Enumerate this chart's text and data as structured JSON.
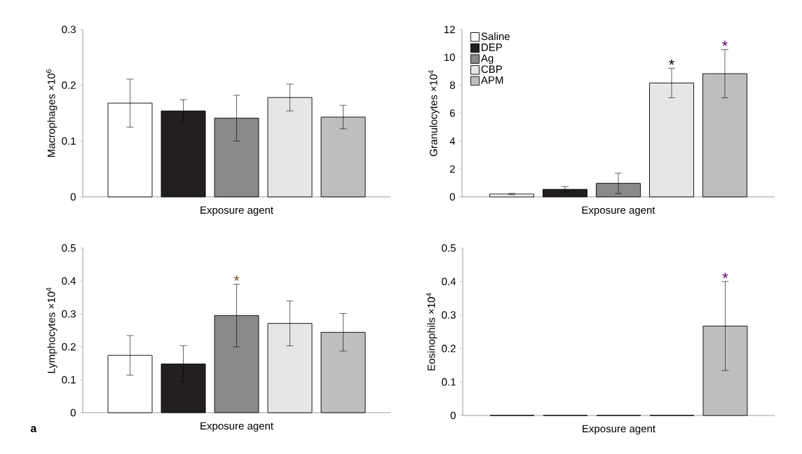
{
  "chart_data": [
    {
      "type": "bar",
      "ylabel": "Macrophages ×10$^{6}$",
      "xlabel": "Exposure agent",
      "categories": [
        null
      ],
      "ylim": [
        0,
        0.3
      ],
      "yticks": [
        0,
        0.1,
        0.2,
        0.3
      ],
      "series": [
        {
          "color": "#ffffff",
          "values": [
            0.168
          ],
          "errors": [
            0.043
          ]
        },
        {
          "color": "#231f20",
          "values": [
            0.154
          ],
          "errors": [
            0.02
          ]
        },
        {
          "color": "#8a8a8a",
          "values": [
            0.141
          ],
          "errors": [
            0.041
          ]
        },
        {
          "color": "#e6e6e6",
          "values": [
            0.178
          ],
          "errors": [
            0.024
          ]
        },
        {
          "color": "#bcbec0",
          "values": [
            0.143
          ],
          "errors": [
            0.021
          ]
        }
      ]
    },
    {
      "type": "bar",
      "ylabel": "Granulocytes ×10$^{4}$",
      "xlabel": "Exposure agent",
      "categories": [
        null
      ],
      "ylim": [
        0,
        12
      ],
      "yticks": [
        0,
        2,
        4,
        6,
        8,
        10,
        12
      ],
      "legend": "top left",
      "series": [
        {
          "name": "Saline",
          "color": "#ffffff",
          "values": [
            0.2
          ],
          "errors": [
            0.05
          ]
        },
        {
          "name": "DEP",
          "color": "#231f20",
          "values": [
            0.54
          ],
          "errors": [
            0.2
          ]
        },
        {
          "name": "Ag",
          "color": "#8a8a8a",
          "values": [
            0.97
          ],
          "errors": [
            0.73
          ]
        },
        {
          "name": "CBP",
          "color": "#e6e6e6",
          "values": [
            8.16
          ],
          "errors": [
            1.06
          ],
          "value_labels": [
            "*"
          ]
        },
        {
          "name": "APM",
          "color": "#bcbec0",
          "values": [
            8.83
          ],
          "errors": [
            1.73
          ],
          "value_labels": [
            "*"
          ]
        }
      ]
    },
    {
      "type": "bar",
      "ylabel": "Lymphocytes ×10$^{4}$",
      "xlabel": "Exposure agent",
      "categories": [
        null
      ],
      "ylim": [
        0,
        0.5
      ],
      "yticks": [
        0,
        0.1,
        0.2,
        0.3,
        0.4,
        0.5
      ],
      "annotations": [
        "a"
      ],
      "series": [
        {
          "color": "#ffffff",
          "values": [
            0.174
          ],
          "errors": [
            0.06
          ]
        },
        {
          "color": "#231f20",
          "values": [
            0.148
          ],
          "errors": [
            0.055
          ]
        },
        {
          "color": "#8a8a8a",
          "values": [
            0.295
          ],
          "errors": [
            0.095
          ],
          "value_labels": [
            "*"
          ]
        },
        {
          "color": "#e6e6e6",
          "values": [
            0.271
          ],
          "errors": [
            0.068
          ]
        },
        {
          "color": "#bcbec0",
          "values": [
            0.244
          ],
          "errors": [
            0.057
          ]
        }
      ]
    },
    {
      "type": "bar",
      "ylabel": "Eosinophils ×10$^{4}$",
      "xlabel": "Exposure agent",
      "categories": [
        null
      ],
      "ylim": [
        0,
        0.5
      ],
      "yticks": [
        0,
        0.1,
        0.2,
        0.3,
        0.4,
        0.5
      ],
      "series": [
        {
          "color": "#ffffff",
          "values": [
            0
          ],
          "errors": [
            null
          ]
        },
        {
          "color": "#231f20",
          "values": [
            0
          ],
          "errors": [
            null
          ]
        },
        {
          "color": "#8a8a8a",
          "values": [
            0
          ],
          "errors": [
            null
          ]
        },
        {
          "color": "#e6e6e6",
          "values": [
            0
          ],
          "errors": [
            null
          ]
        },
        {
          "color": "#bcbec0",
          "values": [
            0.267
          ],
          "errors": [
            0.133
          ],
          "value_labels": [
            "*"
          ]
        }
      ]
    }
  ]
}
